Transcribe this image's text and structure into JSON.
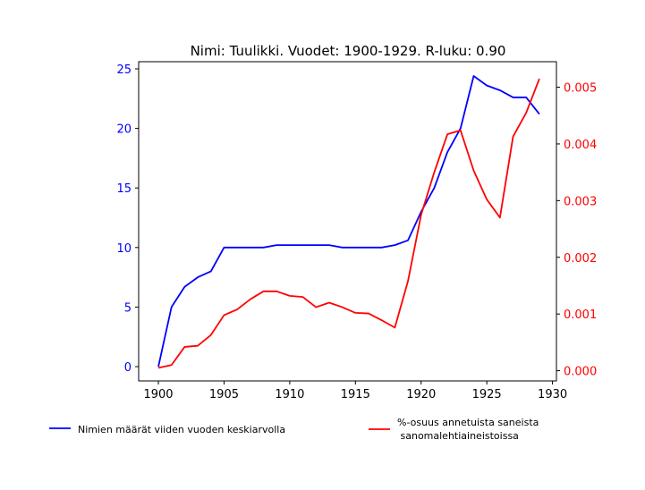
{
  "chart_data": {
    "type": "line",
    "title": "Nimi: Tuulikki. Vuodet: 1900-1929. R-luku: 0.90",
    "x": [
      1900,
      1901,
      1902,
      1903,
      1904,
      1905,
      1906,
      1907,
      1908,
      1909,
      1910,
      1911,
      1912,
      1913,
      1914,
      1915,
      1916,
      1917,
      1918,
      1919,
      1920,
      1921,
      1922,
      1923,
      1924,
      1925,
      1926,
      1927,
      1928,
      1929
    ],
    "xlim": [
      1898.5,
      1930.3
    ],
    "x_ticks": [
      1900,
      1905,
      1910,
      1915,
      1920,
      1925,
      1930
    ],
    "y_left": {
      "lim": [
        -1.2,
        25.6
      ],
      "ticks": [
        0,
        5,
        10,
        15,
        20,
        25
      ],
      "color": "#0000ff"
    },
    "y_right": {
      "lim": [
        -0.00018,
        0.00545
      ],
      "ticks": [
        0.0,
        0.001,
        0.002,
        0.003,
        0.004,
        0.005
      ],
      "tick_labels": [
        "0.000",
        "0.001",
        "0.002",
        "0.003",
        "0.004",
        "0.005"
      ],
      "color": "#ff0000"
    },
    "series": [
      {
        "name": "Nimien määrät viiden vuoden keskiarvolla",
        "axis": "left",
        "color": "#0000ff",
        "values": [
          0,
          5.0,
          6.7,
          7.5,
          8.0,
          10.0,
          10.0,
          10.0,
          10.0,
          10.2,
          10.2,
          10.2,
          10.2,
          10.2,
          10.0,
          10.0,
          10.0,
          10.0,
          10.2,
          10.6,
          13.0,
          15.0,
          18.0,
          20.0,
          24.4,
          23.6,
          23.2,
          22.6,
          22.6,
          21.2
        ]
      },
      {
        "name": "%-osuus annetuista saneista\n sanomalehtiaineistoissa",
        "axis": "right",
        "color": "#ff0000",
        "values": [
          5e-05,
          0.0001,
          0.00042,
          0.00044,
          0.00063,
          0.00098,
          0.00108,
          0.00126,
          0.0014,
          0.0014,
          0.00132,
          0.0013,
          0.00112,
          0.0012,
          0.00112,
          0.00102,
          0.00101,
          0.00089,
          0.00076,
          0.00158,
          0.00275,
          0.0035,
          0.00417,
          0.00424,
          0.00353,
          0.00302,
          0.0027,
          0.00413,
          0.00455,
          0.00515
        ]
      }
    ],
    "legend_placement": "bottom",
    "grid": false
  }
}
